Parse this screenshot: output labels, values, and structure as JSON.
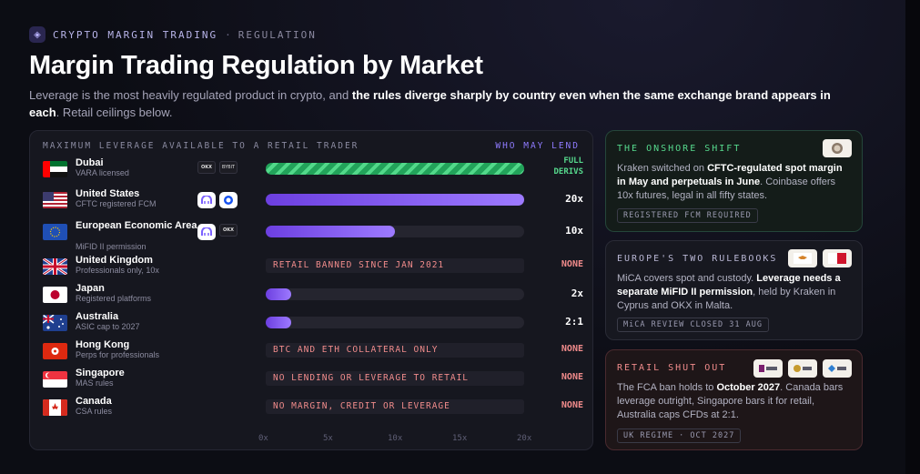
{
  "header": {
    "kicker": "CRYPTO MARGIN TRADING",
    "kicker_sep": "·",
    "kicker_sub": "REGULATION",
    "title": "Margin Trading Regulation by Market",
    "subtitle_a": "Leverage is the most heavily regulated product in crypto, and ",
    "subtitle_b": "the rules diverge sharply by country even when the same exchange brand appears in each",
    "subtitle_c": ". Retail ceilings below."
  },
  "panel": {
    "heading": "MAXIMUM LEVERAGE AVAILABLE TO A RETAIL TRADER",
    "heading_right": "WHO MAY LEND",
    "axis": [
      "0x",
      "5x",
      "10x",
      "15x",
      "20x"
    ]
  },
  "colors": {
    "accent": "#8f7bff",
    "green": "#56d98d",
    "red": "#f08b8b"
  },
  "rows": [
    {
      "name": "Dubai",
      "note": "VARA licensed",
      "flag": "ae",
      "logos": [
        "okx-logo",
        "bybit-logo"
      ],
      "bar_fraction": 1.0,
      "bar_style": "striped",
      "value_1": "FULL",
      "value_2": "DERIVS"
    },
    {
      "name": "United States",
      "note": "CFTC registered FCM",
      "flag": "us",
      "logos": [
        "kraken-logo",
        "coinbase-logo"
      ],
      "bar_fraction": 1.0,
      "bar_style": "solid",
      "value_1": "20x"
    },
    {
      "name": "European Economic Area",
      "note": "MiFID II permission",
      "flag": "eu",
      "logos": [
        "kraken-logo",
        "okx-logo"
      ],
      "bar_fraction": 0.5,
      "bar_style": "solid",
      "value_1": "10x"
    },
    {
      "name": "United Kingdom",
      "note": "Professionals only, 10x",
      "flag": "gb",
      "banned": "RETAIL BANNED SINCE JAN 2021",
      "value_1": "NONE"
    },
    {
      "name": "Japan",
      "note": "Registered platforms",
      "flag": "jp",
      "bar_fraction": 0.1,
      "bar_style": "solid",
      "value_1": "2x"
    },
    {
      "name": "Australia",
      "note": "ASIC cap to 2027",
      "flag": "au",
      "bar_fraction": 0.1,
      "bar_style": "solid",
      "value_1": "2:1"
    },
    {
      "name": "Hong Kong",
      "note": "Perps for professionals",
      "flag": "hk",
      "banned": "BTC AND ETH COLLATERAL ONLY",
      "value_1": "NONE"
    },
    {
      "name": "Singapore",
      "note": "MAS rules",
      "flag": "sg",
      "banned": "NO LENDING OR LEVERAGE TO RETAIL",
      "value_1": "NONE"
    },
    {
      "name": "Canada",
      "note": "CSA rules",
      "flag": "ca",
      "banned": "NO MARGIN, CREDIT OR LEVERAGE",
      "value_1": "NONE"
    }
  ],
  "cards": {
    "onshore": {
      "title": "THE ONSHORE SHIFT",
      "t1": "Kraken switched on ",
      "t2": "CFTC-regulated spot margin in May and perpetuals in June",
      "t3": ". Coinbase offers 10x futures, legal in all fifty states.",
      "tag": "REGISTERED FCM REQUIRED"
    },
    "europe": {
      "title": "EUROPE'S TWO RULEBOOKS",
      "t1": "MiCA covers spot and custody. ",
      "t2": "Leverage needs a separate MiFID II permission",
      "t3": ", held by Kraken in Cyprus and OKX in Malta.",
      "tag": "MiCA REVIEW CLOSED 31 AUG"
    },
    "retail": {
      "title": "RETAIL SHUT OUT",
      "t1": "The FCA ban holds to ",
      "t2": "October 2027",
      "t3": ". Canada bars leverage outright, Singapore bars it for retail, Australia caps CFDs at 2:1.",
      "tag": "UK REGIME · OCT 2027"
    }
  }
}
